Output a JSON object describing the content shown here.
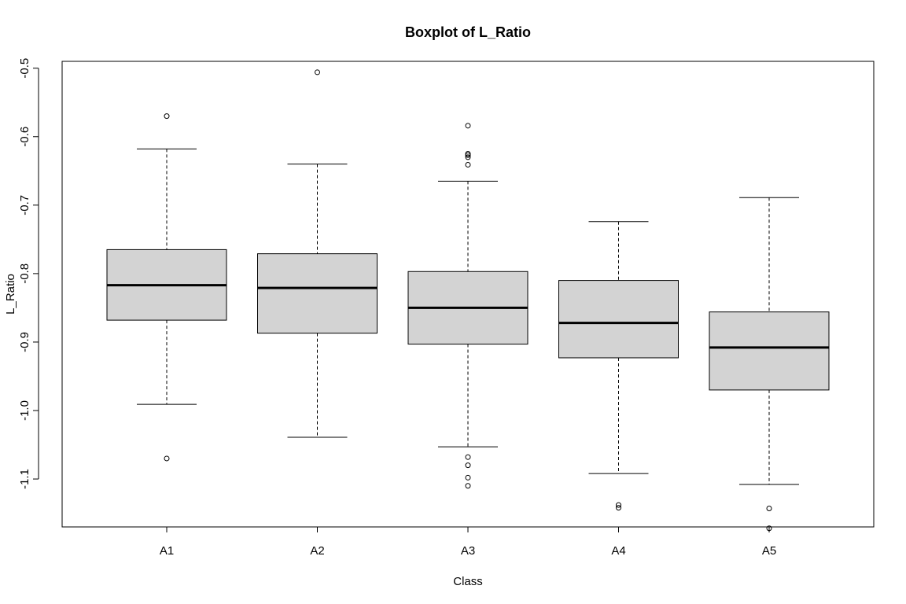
{
  "chart_data": {
    "type": "boxplot",
    "title": "Boxplot of L_Ratio",
    "xlabel": "Class",
    "ylabel": "L_Ratio",
    "categories": [
      "A1",
      "A2",
      "A3",
      "A4",
      "A5"
    ],
    "ylim": [
      -1.17,
      -0.49
    ],
    "yticks": [
      -1.1,
      -1.0,
      -0.9,
      -0.8,
      -0.7,
      -0.6,
      -0.5
    ],
    "ytick_labels": [
      "-1.1",
      "-1.0",
      "-0.9",
      "-0.8",
      "-0.7",
      "-0.6",
      "-0.5"
    ],
    "grid": false,
    "box_fill": "#d3d3d3",
    "boxes": [
      {
        "category": "A1",
        "whisker_low": -0.991,
        "q1": -0.868,
        "median": -0.817,
        "q3": -0.765,
        "whisker_high": -0.618,
        "outliers": [
          -0.57,
          -1.07
        ]
      },
      {
        "category": "A2",
        "whisker_low": -1.039,
        "q1": -0.887,
        "median": -0.821,
        "q3": -0.771,
        "whisker_high": -0.64,
        "outliers": [
          -0.506
        ]
      },
      {
        "category": "A3",
        "whisker_low": -1.053,
        "q1": -0.903,
        "median": -0.85,
        "q3": -0.797,
        "whisker_high": -0.665,
        "outliers": [
          -0.584,
          -0.625,
          -0.627,
          -0.63,
          -0.641,
          -1.068,
          -1.08,
          -1.098,
          -1.11
        ]
      },
      {
        "category": "A4",
        "whisker_low": -1.092,
        "q1": -0.923,
        "median": -0.872,
        "q3": -0.81,
        "whisker_high": -0.724,
        "outliers": [
          -1.138,
          -1.142
        ]
      },
      {
        "category": "A5",
        "whisker_low": -1.108,
        "q1": -0.97,
        "median": -0.908,
        "q3": -0.856,
        "whisker_high": -0.689,
        "outliers": [
          -1.143,
          -1.172
        ]
      }
    ]
  }
}
